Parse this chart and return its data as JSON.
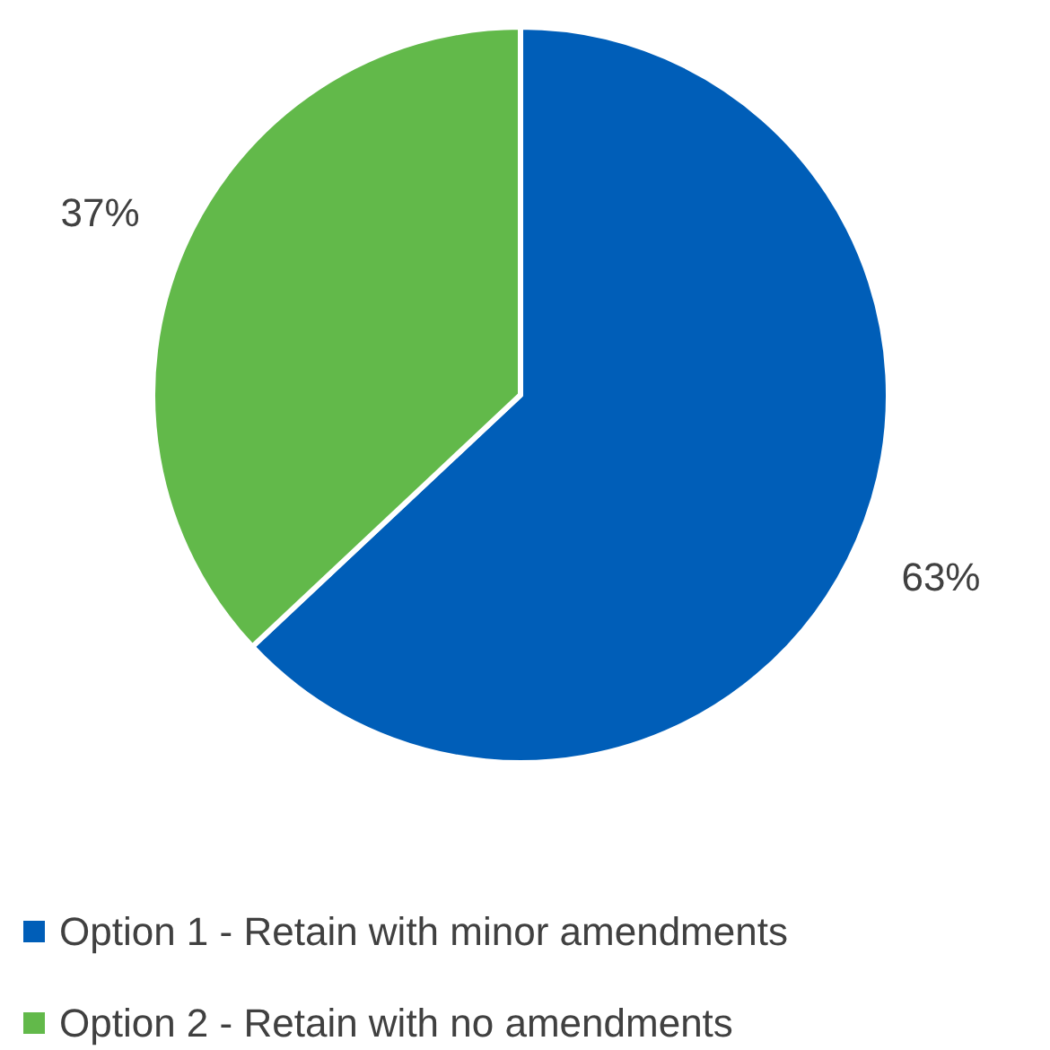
{
  "chart_data": {
    "type": "pie",
    "categories": [
      "Option 1 - Retain with minor amendments",
      "Option 2 - Retain with no amendments"
    ],
    "values": [
      63,
      37
    ],
    "colors": [
      "#005eb8",
      "#62b94a"
    ],
    "value_labels": [
      "63%",
      "37%"
    ],
    "legend": "bottom"
  }
}
